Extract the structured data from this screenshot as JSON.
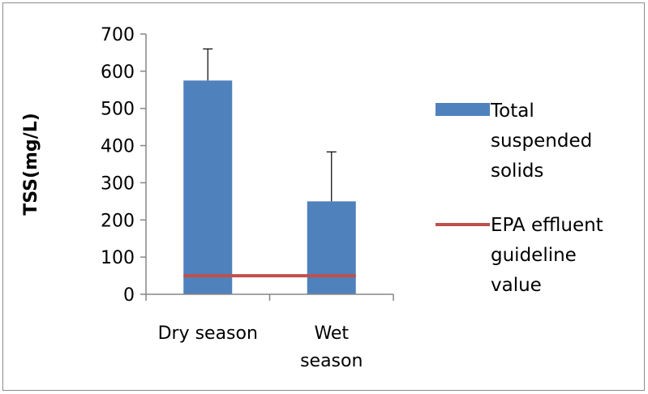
{
  "chart_data": {
    "type": "bar",
    "categories": [
      "Dry season",
      "Wet season"
    ],
    "category_display_lines": [
      [
        "Dry season"
      ],
      [
        "Wet",
        "season"
      ]
    ],
    "series": [
      {
        "name": "Total suspended solids",
        "legend_lines": [
          "Total",
          "suspended",
          "solids"
        ],
        "kind": "bar",
        "values": [
          575,
          250
        ],
        "error_upper": [
          85,
          133
        ],
        "color": "#4f81bd"
      },
      {
        "name": "EPA effluent guideline value",
        "legend_lines": [
          "EPA effluent",
          "guideline",
          "value"
        ],
        "kind": "line",
        "values": [
          50,
          50
        ],
        "color": "#c0504d"
      }
    ],
    "title": "",
    "xlabel": "",
    "ylabel": "TSS(mg/L)",
    "ylim": [
      0,
      700
    ],
    "yticks": [
      0,
      100,
      200,
      300,
      400,
      500,
      600,
      700
    ],
    "grid": false,
    "legend_position": "right"
  }
}
